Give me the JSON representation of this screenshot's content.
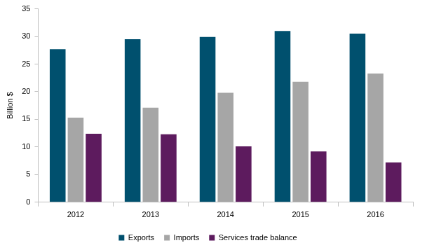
{
  "chart_data": {
    "type": "bar",
    "categories": [
      "2012",
      "2013",
      "2014",
      "2015",
      "2016"
    ],
    "series": [
      {
        "name": "Exports",
        "color": "#00506e",
        "values": [
          27.7,
          29.5,
          29.9,
          31.0,
          30.5
        ]
      },
      {
        "name": "Imports",
        "color": "#a6a6a6",
        "values": [
          15.3,
          17.1,
          19.8,
          21.8,
          23.3
        ]
      },
      {
        "name": "Services trade balance",
        "color": "#5d1b5e",
        "values": [
          12.4,
          12.3,
          10.1,
          9.2,
          7.2
        ]
      }
    ],
    "y_label": "Billion $",
    "ylim": [
      0,
      35
    ],
    "yticks": [
      0,
      5,
      10,
      15,
      20,
      25,
      30,
      35
    ],
    "grid": false,
    "legend": "bottom"
  }
}
